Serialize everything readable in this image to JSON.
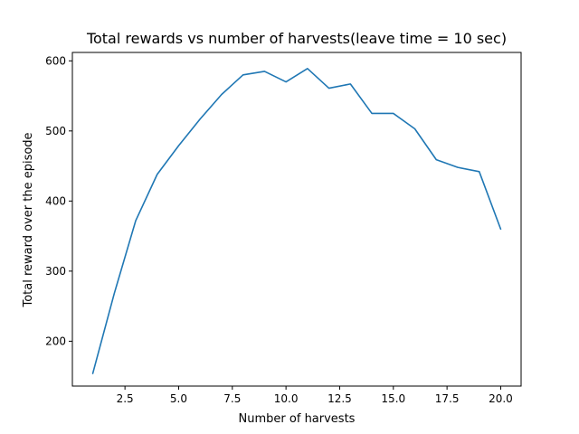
{
  "chart_data": {
    "type": "line",
    "title": "Total rewards vs number of harvests(leave time = 10 sec)",
    "xlabel": "Number of harvests",
    "ylabel": "Total reward over the episode",
    "xlim": [
      0.05,
      20.95
    ],
    "ylim": [
      136,
      612
    ],
    "xticks": [
      2.5,
      5.0,
      7.5,
      10.0,
      12.5,
      15.0,
      17.5,
      20.0
    ],
    "xtick_labels": [
      "2.5",
      "5.0",
      "7.5",
      "10.0",
      "12.5",
      "15.0",
      "17.5",
      "20.0"
    ],
    "yticks": [
      200,
      300,
      400,
      500,
      600
    ],
    "ytick_labels": [
      "200",
      "300",
      "400",
      "500",
      "600"
    ],
    "grid": false,
    "series": [
      {
        "color": "#1f77b4",
        "x": [
          1,
          2,
          3,
          4,
          5,
          6,
          7,
          8,
          9,
          10,
          11,
          12,
          13,
          14,
          15,
          16,
          17,
          18,
          19,
          20
        ],
        "y": [
          154,
          268,
          372,
          438,
          479,
          517,
          552,
          580,
          585,
          570,
          589,
          561,
          567,
          525,
          525,
          503,
          459,
          448,
          442,
          360
        ]
      }
    ]
  }
}
